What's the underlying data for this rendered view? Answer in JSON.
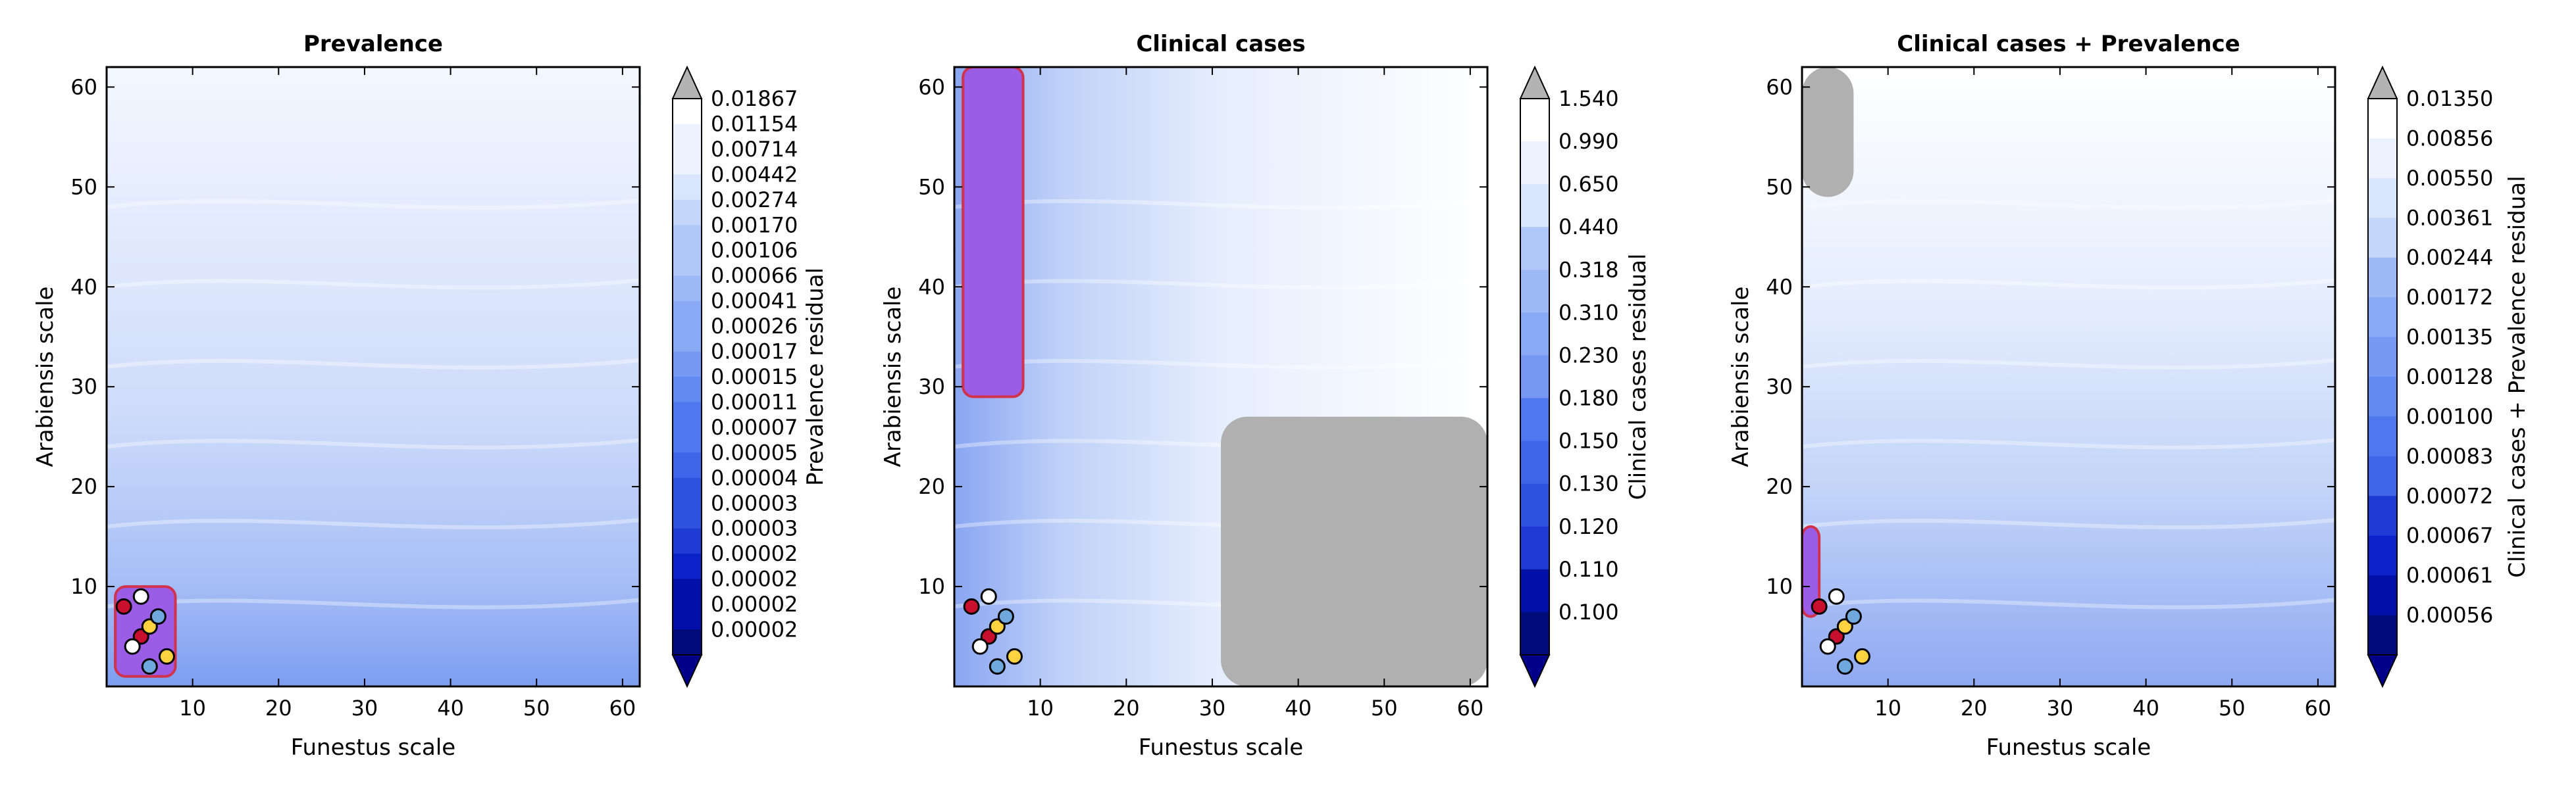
{
  "chart_data": [
    {
      "type": "heatmap",
      "title": "Prevalence",
      "xlabel": "Funestus scale",
      "ylabel": "Arabiensis scale",
      "xticks": [
        10,
        20,
        30,
        40,
        50,
        60
      ],
      "yticks": [
        10,
        20,
        30,
        40,
        50,
        60
      ],
      "xlim": [
        0,
        62
      ],
      "ylim": [
        0,
        62
      ],
      "colorbar": {
        "label": "Prevalence residual",
        "levels": [
          "0.01867",
          "0.01154",
          "0.00714",
          "0.00442",
          "0.00274",
          "0.00170",
          "0.00106",
          "0.00066",
          "0.00041",
          "0.00026",
          "0.00017",
          "0.00015",
          "0.00011",
          "0.00007",
          "0.00005",
          "0.00004",
          "0.00003",
          "0.00003",
          "0.00002",
          "0.00002",
          "0.00002",
          "0.00002"
        ],
        "extend": "both"
      },
      "highlight_regions": [
        {
          "color": "#9b5de5",
          "note": "low-residual points near origin",
          "x": [
            1,
            8
          ],
          "y": [
            1,
            10
          ]
        }
      ],
      "markers": {
        "x": [
          4,
          5,
          3,
          6,
          2,
          7,
          4,
          5
        ],
        "y": [
          5,
          6,
          4,
          7,
          8,
          3,
          9,
          2
        ]
      }
    },
    {
      "type": "heatmap",
      "title": "Clinical cases",
      "xlabel": "Funestus scale",
      "ylabel": "Arabiensis scale",
      "xticks": [
        10,
        20,
        30,
        40,
        50,
        60
      ],
      "yticks": [
        10,
        20,
        30,
        40,
        50,
        60
      ],
      "xlim": [
        0,
        62
      ],
      "ylim": [
        0,
        62
      ],
      "colorbar": {
        "label": "Clinical cases residual",
        "levels": [
          "1.540",
          "0.990",
          "0.650",
          "0.440",
          "0.318",
          "0.310",
          "0.230",
          "0.180",
          "0.150",
          "0.130",
          "0.120",
          "0.110",
          "0.100"
        ],
        "extend": "both"
      },
      "highlight_regions": [
        {
          "color": "#9b5de5",
          "note": "purple band",
          "x": [
            1,
            8
          ],
          "y": [
            29,
            62
          ]
        },
        {
          "color": "#b0b0b0",
          "note": "grey region",
          "x": [
            31,
            62
          ],
          "y": [
            0,
            27
          ]
        }
      ],
      "markers": {
        "x": [
          4,
          5,
          3,
          6,
          2,
          7,
          4,
          5
        ],
        "y": [
          5,
          6,
          4,
          7,
          8,
          3,
          9,
          2
        ]
      }
    },
    {
      "type": "heatmap",
      "title": "Clinical cases + Prevalence",
      "xlabel": "Funestus scale",
      "ylabel": "Arabiensis scale",
      "xticks": [
        10,
        20,
        30,
        40,
        50,
        60
      ],
      "yticks": [
        10,
        20,
        30,
        40,
        50,
        60
      ],
      "xlim": [
        0,
        62
      ],
      "ylim": [
        0,
        62
      ],
      "colorbar": {
        "label": "Clinical cases + Prevalence residual",
        "levels": [
          "0.01350",
          "0.00856",
          "0.00550",
          "0.00361",
          "0.00244",
          "0.00172",
          "0.00135",
          "0.00128",
          "0.00100",
          "0.00083",
          "0.00072",
          "0.00067",
          "0.00061",
          "0.00056"
        ],
        "extend": "both"
      },
      "highlight_regions": [
        {
          "color": "#b0b0b0",
          "note": "grey region top-left",
          "x": [
            0,
            6
          ],
          "y": [
            49,
            62
          ]
        },
        {
          "color": "#9b5de5",
          "note": "purple patch",
          "x": [
            0,
            2
          ],
          "y": [
            7,
            16
          ]
        }
      ],
      "markers": {
        "x": [
          4,
          5,
          3,
          6,
          2,
          7,
          4,
          5
        ],
        "y": [
          5,
          6,
          4,
          7,
          8,
          3,
          9,
          2
        ]
      }
    }
  ],
  "colors": {
    "ramp": [
      "#000b7a",
      "#0010a8",
      "#0b22c8",
      "#1f3bd6",
      "#2f52e0",
      "#3f66e8",
      "#4f78ee",
      "#6289f0",
      "#7599f2",
      "#89a9f4",
      "#9db9f6",
      "#b0c8f8",
      "#c4d7fa",
      "#d8e5fc",
      "#ecf2fe",
      "#ffffff"
    ],
    "grey": "#b0b0b0",
    "purple": "#9b5de5",
    "red_edge": "#d1334d"
  }
}
